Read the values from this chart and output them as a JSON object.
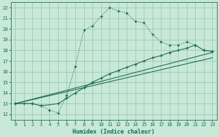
{
  "xlabel": "Humidex (Indice chaleur)",
  "bg_color": "#c8e8d8",
  "grid_color": "#9dc8b4",
  "line_color": "#1a6b55",
  "xlim": [
    -0.5,
    23.5
  ],
  "ylim": [
    11.5,
    22.5
  ],
  "xticks": [
    0,
    1,
    2,
    3,
    4,
    5,
    6,
    7,
    8,
    9,
    10,
    11,
    12,
    13,
    14,
    15,
    16,
    17,
    18,
    19,
    20,
    21,
    22,
    23
  ],
  "yticks": [
    12,
    13,
    14,
    15,
    16,
    17,
    18,
    19,
    20,
    21,
    22
  ],
  "line1_x": [
    0,
    1,
    2,
    3,
    4,
    5,
    6,
    7,
    8,
    9,
    10,
    11,
    12,
    13,
    14,
    15,
    16,
    17,
    18,
    19,
    20,
    21,
    22,
    23
  ],
  "line1_y": [
    13,
    13,
    13,
    12.8,
    12.4,
    12.1,
    13.8,
    16.5,
    19.9,
    20.3,
    21.2,
    22.0,
    21.7,
    21.5,
    20.7,
    20.6,
    19.5,
    18.8,
    18.5,
    18.5,
    18.8,
    18.5,
    18.0,
    17.9
  ],
  "line2_x": [
    0,
    2,
    3,
    5,
    6,
    7,
    8,
    9,
    10,
    11,
    12,
    13,
    14,
    15,
    16,
    17,
    18,
    19,
    20,
    21,
    22,
    23
  ],
  "line2_y": [
    13,
    13,
    12.8,
    13.0,
    13.5,
    14.0,
    14.5,
    15.0,
    15.4,
    15.8,
    16.1,
    16.4,
    16.7,
    17.0,
    17.3,
    17.5,
    17.8,
    18.0,
    18.2,
    18.5,
    18.0,
    17.9
  ],
  "line3_x": [
    0,
    23
  ],
  "line3_y": [
    13.0,
    17.8
  ],
  "line4_x": [
    0,
    23
  ],
  "line4_y": [
    13.0,
    17.3
  ]
}
